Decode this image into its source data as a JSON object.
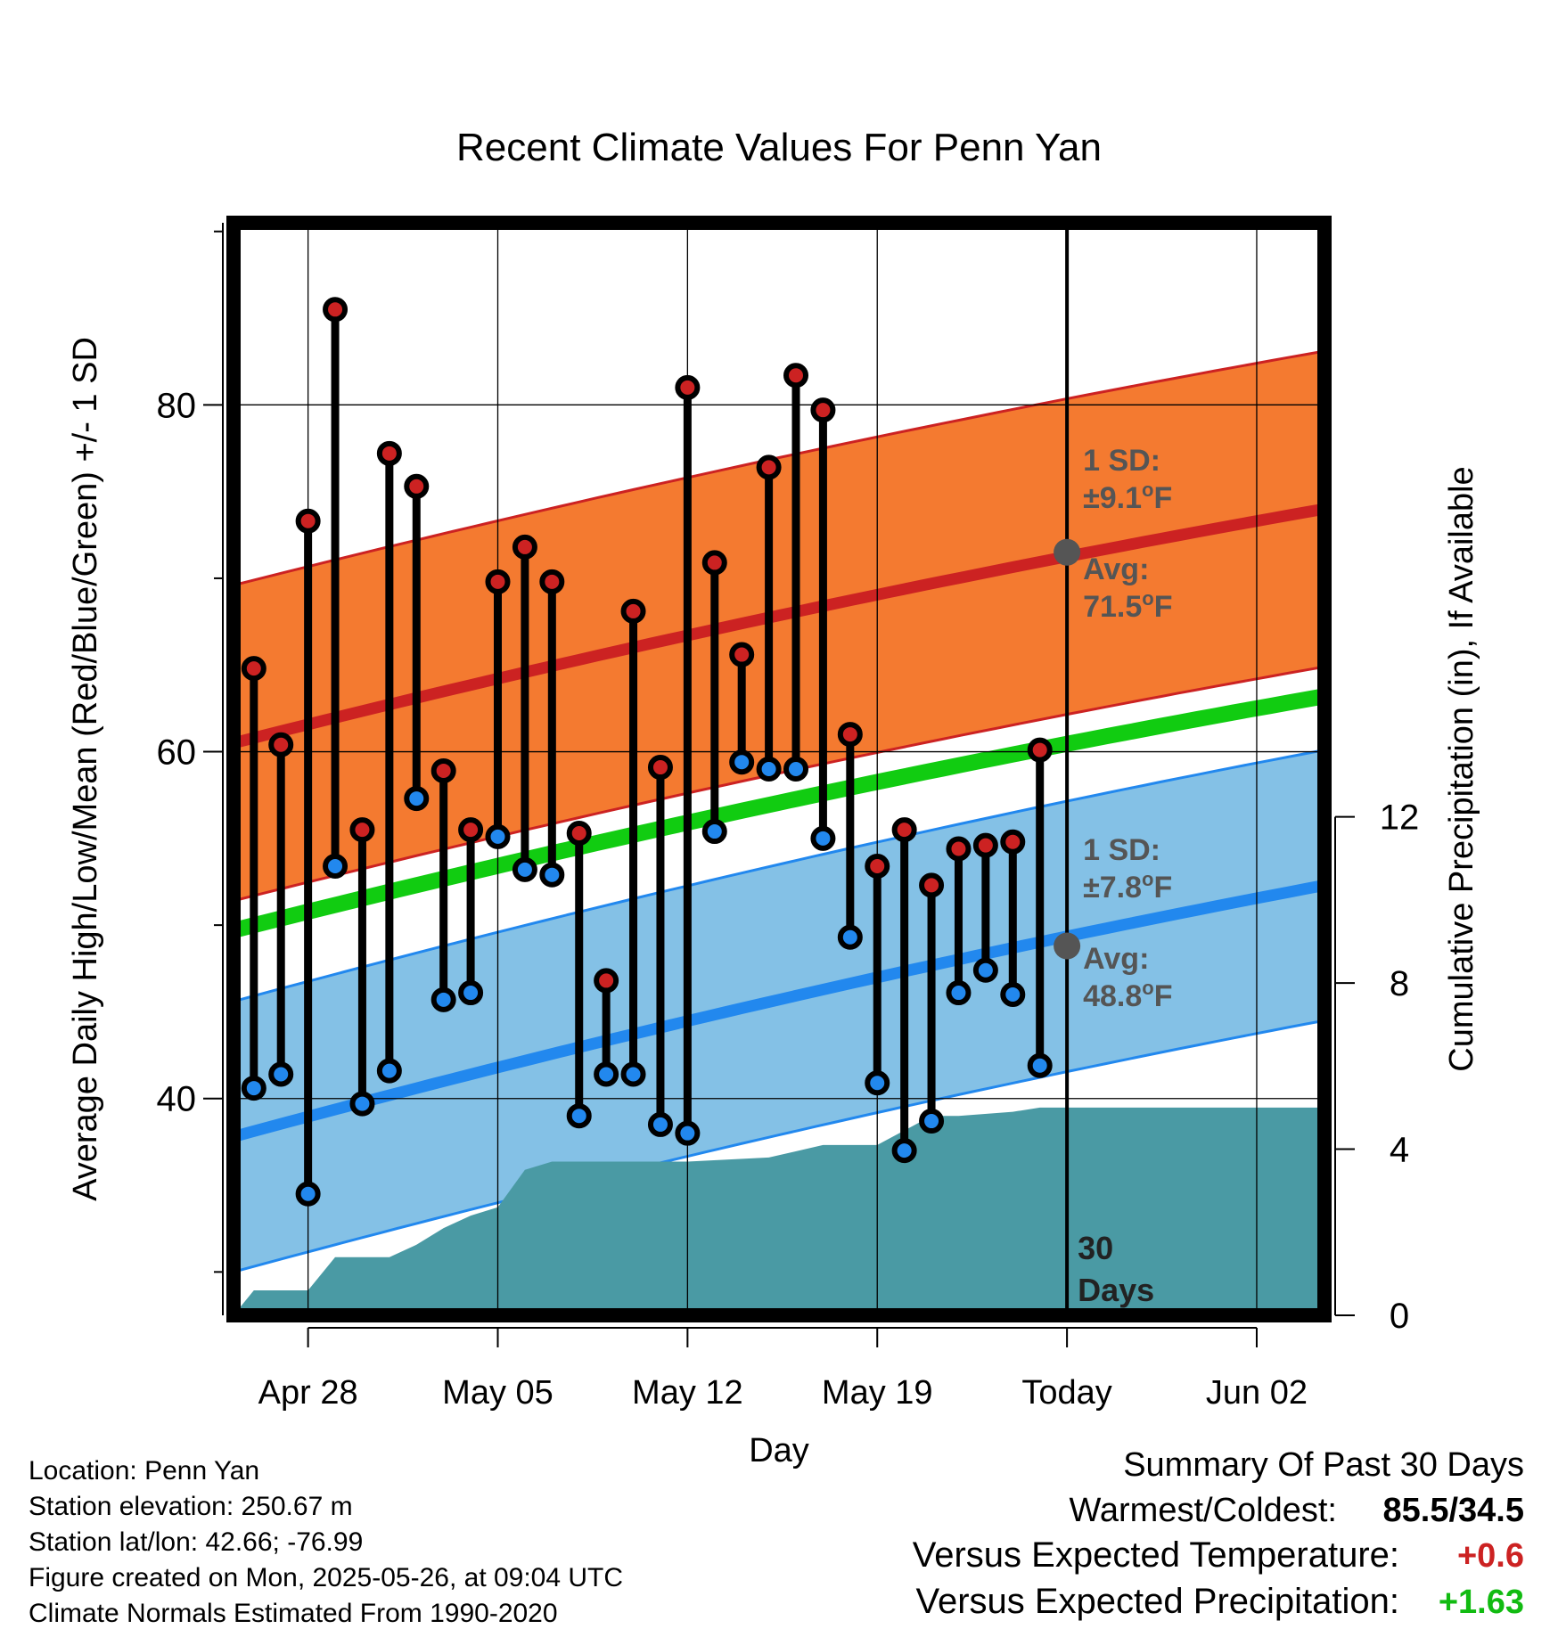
{
  "chart_data": {
    "type": "line",
    "title": "Recent Climate Values For Penn Yan",
    "xlabel": "Day",
    "ylabel": "Average Daily High/Low/Mean (Red/Blue/Green) +/- 1 SD",
    "y2label": "Cumulative Precipitation (in), If Available",
    "x_tick_labels": [
      "Apr 28",
      "May 05",
      "May 12",
      "May 19",
      "Today",
      "Jun 02"
    ],
    "x_tick_days": [
      3,
      10,
      17,
      24,
      31,
      38
    ],
    "x_range_days": [
      0.25,
      40.5
    ],
    "today_day": 31,
    "ylim": [
      27.5,
      90.5
    ],
    "y_ticks": [
      40,
      60,
      80
    ],
    "y_minor_ticks": [
      30,
      50,
      70,
      90
    ],
    "y2lim": [
      0,
      26.3
    ],
    "y2_ticks": [
      0,
      4,
      8,
      12
    ],
    "grid": true,
    "temperature_days": [
      1,
      2,
      3,
      4,
      5,
      6,
      7,
      8,
      9,
      10,
      11,
      12,
      13,
      14,
      15,
      16,
      17,
      18,
      19,
      20,
      21,
      22,
      23,
      24,
      25,
      26,
      27,
      28,
      29,
      30
    ],
    "series": [
      {
        "name": "High",
        "color": "#cc2222",
        "values": [
          64.8,
          60.4,
          73.3,
          85.5,
          55.5,
          77.2,
          75.3,
          58.9,
          55.5,
          69.8,
          71.8,
          69.8,
          55.3,
          46.8,
          68.1,
          59.1,
          81.0,
          70.9,
          65.6,
          76.4,
          81.7,
          79.7,
          61.0,
          53.4,
          55.5,
          52.3,
          54.4,
          54.6,
          54.8,
          60.1
        ]
      },
      {
        "name": "Low",
        "color": "#2288ee",
        "values": [
          40.6,
          41.4,
          34.5,
          53.4,
          39.7,
          41.6,
          57.3,
          45.7,
          46.1,
          55.1,
          53.2,
          52.9,
          39.0,
          41.4,
          41.4,
          38.5,
          38.0,
          55.4,
          59.4,
          59.0,
          59.0,
          55.0,
          49.3,
          40.9,
          37.0,
          38.7,
          46.1,
          47.4,
          46.0,
          41.9
        ]
      }
    ],
    "normals_days": [
      0.25,
      40.5
    ],
    "normal_high": [
      60.5,
      74.0
    ],
    "normal_high_sd": 9.1,
    "normal_low": [
      37.8,
      52.3
    ],
    "normal_low_sd": 7.8,
    "normal_mean": [
      49.7,
      63.2
    ],
    "precip_days": [
      0.25,
      1,
      3,
      4,
      6,
      7,
      8,
      9,
      10,
      11,
      12,
      17,
      20,
      22,
      24,
      26,
      27,
      29,
      30,
      40.5
    ],
    "precip_cum": [
      0.0,
      0.6,
      0.6,
      1.4,
      1.4,
      1.7,
      2.1,
      2.4,
      2.6,
      3.5,
      3.7,
      3.7,
      3.8,
      4.1,
      4.1,
      4.8,
      4.8,
      4.9,
      5.0,
      5.0
    ],
    "today_high_label": [
      "1 SD:",
      "±9.1",
      "o",
      "F",
      "Avg:",
      "71.5",
      "o",
      "F"
    ],
    "today_low_label": [
      "1 SD:",
      "±7.8",
      "o",
      "F",
      "Avg:",
      "48.8",
      "o",
      "F"
    ],
    "today_high_avg": 71.5,
    "today_low_avg": 48.8,
    "days_label": [
      "30",
      "Days"
    ]
  },
  "info": {
    "location": "Location: Penn Yan",
    "elevation": "Station elevation: 250.67 m",
    "latlon": "Station lat/lon: 42.66; -76.99",
    "created": "Figure created on Mon, 2025-05-26, at 09:04 UTC",
    "normals": "Climate Normals Estimated From 1990-2020"
  },
  "summary": {
    "heading": "Summary Of Past 30 Days",
    "warmest_label": "Warmest/Coldest:",
    "warmest_value": "85.5/34.5",
    "temp_label": "Versus Expected Temperature:",
    "temp_value": "+0.6",
    "temp_color": "#cc2222",
    "precip_label": "Versus Expected Precipitation:",
    "precip_value": "+1.63",
    "precip_color": "#11bb11"
  },
  "colors": {
    "high_band": "#f47a30",
    "high_line": "#cc2222",
    "low_band": "#84c1e6",
    "low_line": "#2288ee",
    "mean_line": "#11cc11",
    "precip": "#4a9aa4",
    "annotation": "#555555"
  }
}
